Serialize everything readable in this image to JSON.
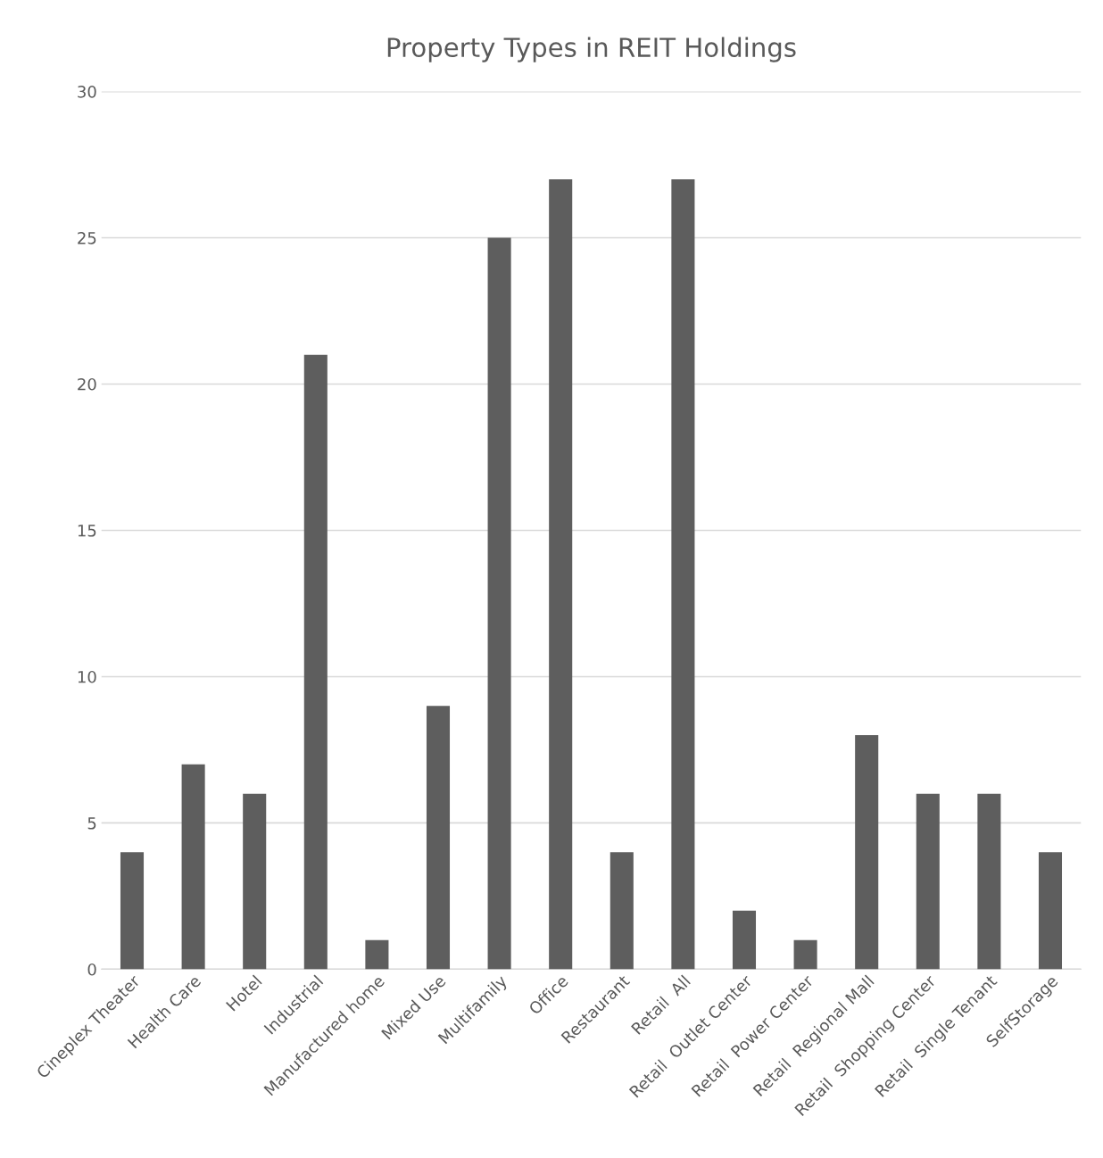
{
  "chart_data": {
    "type": "bar",
    "title": "Property Types in REIT Holdings",
    "categories": [
      "Cineplex Theater",
      "Health Care",
      "Hotel",
      "Industrial",
      "Manufactured home",
      "Mixed Use",
      "Multifamily",
      "Office",
      "Restaurant",
      "Retail  All",
      "Retail  Outlet Center",
      "Retail  Power Center",
      "Retail  Regional Mall",
      "Retail  Shopping Center",
      "Retail  Single Tenant",
      "SelfStorage"
    ],
    "values": [
      4,
      7,
      6,
      21,
      1,
      9,
      25,
      27,
      4,
      27,
      2,
      1,
      8,
      6,
      6,
      4
    ],
    "color": "#5e5e5e",
    "ylim": [
      0,
      30
    ],
    "yticks": [
      0,
      5,
      10,
      15,
      20,
      25,
      30
    ],
    "grid": "y",
    "legend": false
  }
}
